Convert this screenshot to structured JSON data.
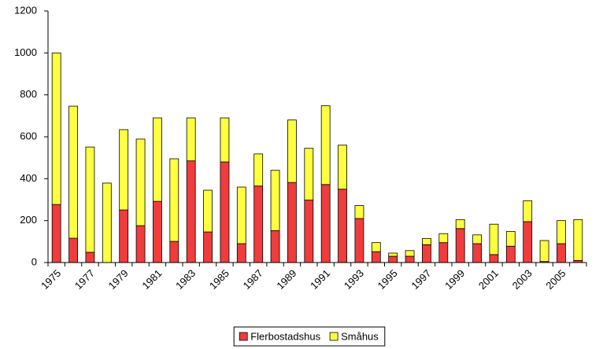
{
  "chart_data": {
    "type": "stacked_bar",
    "categories": [
      "1975",
      null,
      "1977",
      null,
      "1979",
      null,
      "1981",
      null,
      "1983",
      null,
      "1985",
      null,
      "1987",
      null,
      "1989",
      null,
      "1991",
      null,
      "1993",
      null,
      "1995",
      null,
      "1997",
      null,
      "1999",
      null,
      "2001",
      null,
      "2003",
      null,
      "2005",
      null
    ],
    "series": [
      {
        "name": "Flerbostadshus",
        "color": "#f03c3c",
        "values": [
          277,
          116,
          49,
          0,
          251,
          176,
          292,
          101,
          485,
          146,
          480,
          90,
          365,
          152,
          382,
          298,
          372,
          350,
          210,
          52,
          30,
          30,
          85,
          95,
          162,
          90,
          38,
          78,
          195,
          5,
          90,
          10
        ]
      },
      {
        "name": "Småhus",
        "color": "#ffff40",
        "values": [
          723,
          630,
          502,
          379,
          383,
          413,
          398,
          394,
          205,
          199,
          210,
          270,
          153,
          288,
          298,
          247,
          376,
          210,
          62,
          43,
          15,
          27,
          30,
          43,
          43,
          42,
          145,
          70,
          100,
          100,
          110,
          195
        ]
      }
    ],
    "ylim": [
      0,
      1200
    ],
    "yticks": [
      0,
      200,
      400,
      600,
      800,
      1000,
      1200
    ],
    "grid": false,
    "legend": "bottom"
  }
}
